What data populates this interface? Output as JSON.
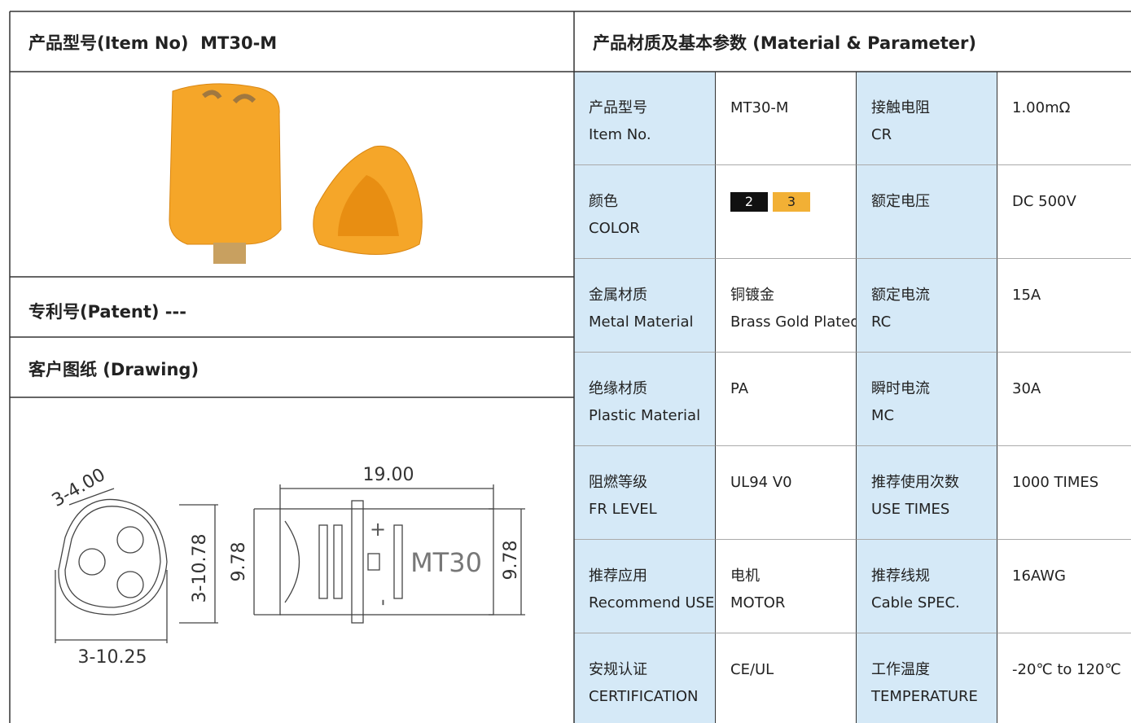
{
  "left": {
    "header": {
      "label": "产品型号(Item No)",
      "value": "MT30-M"
    },
    "patent": {
      "label": "专利号(Patent)",
      "value": "---"
    },
    "drawing": {
      "title": "客户图纸 (Drawing)",
      "dimensions": [
        "3-4.00",
        "19.00",
        "3-10.78",
        "9.78",
        "9.78",
        "3-10.25"
      ],
      "part_marks": [
        "MT30",
        "+",
        "-"
      ]
    }
  },
  "right": {
    "title": "产品材质及基本参数 (Material & Parameter)",
    "rows": [
      {
        "label": [
          "产品型号",
          "Item No."
        ],
        "value": [
          "MT30-M"
        ],
        "label2": [
          "接触电阻",
          "CR"
        ],
        "value2": [
          "1.00mΩ"
        ]
      },
      {
        "label": [
          "颜色",
          "COLOR"
        ],
        "swatches": [
          "2",
          "3"
        ],
        "label2": [
          "额定电压"
        ],
        "value2": [
          "DC 500V"
        ]
      },
      {
        "label": [
          "金属材质",
          "Metal Material"
        ],
        "value": [
          "铜镀金",
          "Brass Gold Plated"
        ],
        "label2": [
          "额定电流",
          "RC"
        ],
        "value2": [
          "15A"
        ]
      },
      {
        "label": [
          "绝缘材质",
          "Plastic Material"
        ],
        "value": [
          "PA"
        ],
        "label2": [
          "瞬时电流",
          "MC"
        ],
        "value2": [
          "30A"
        ]
      },
      {
        "label": [
          "阻燃等级",
          "FR LEVEL"
        ],
        "value": [
          "UL94 V0"
        ],
        "label2": [
          "推荐使用次数",
          "USE TIMES"
        ],
        "value2": [
          "1000 TIMES"
        ]
      },
      {
        "label": [
          "推荐应用",
          "Recommend USE"
        ],
        "value": [
          "电机",
          "MOTOR"
        ],
        "label2": [
          "推荐线规",
          "Cable SPEC."
        ],
        "value2": [
          "16AWG"
        ]
      },
      {
        "label": [
          "安规认证",
          "CERTIFICATION"
        ],
        "value": [
          "CE/UL"
        ],
        "label2": [
          "工作温度",
          "TEMPERATURE"
        ],
        "value2": [
          "-20℃ to 120℃"
        ]
      }
    ]
  }
}
